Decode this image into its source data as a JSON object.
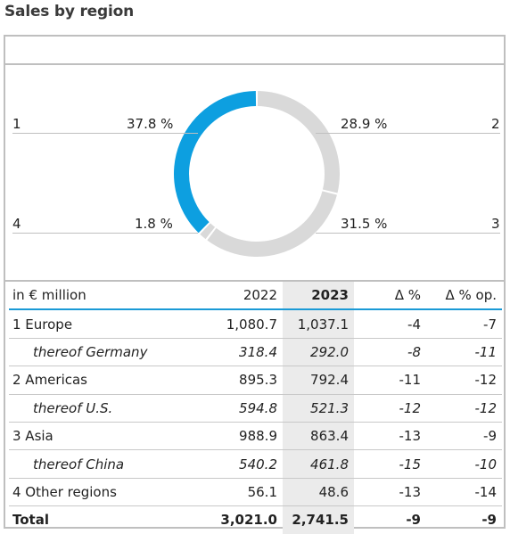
{
  "title": "Sales by region",
  "colors": {
    "highlight": "#0d9fe0",
    "segment": "#d9d9d9",
    "accent_line": "#1a9ad6"
  },
  "chart_data": {
    "type": "pie",
    "variant": "donut",
    "slices": [
      {
        "number": "1",
        "value": 37.8,
        "label": "37.8 %",
        "color": "#0d9fe0"
      },
      {
        "number": "2",
        "value": 28.9,
        "label": "28.9 %",
        "color": "#d9d9d9"
      },
      {
        "number": "3",
        "value": 31.5,
        "label": "31.5 %",
        "color": "#d9d9d9"
      },
      {
        "number": "4",
        "value": 1.8,
        "label": "1.8 %",
        "color": "#d9d9d9"
      }
    ]
  },
  "table": {
    "columns": [
      "in € million",
      "2022",
      "2023",
      "Δ %",
      "Δ % op."
    ],
    "rows": [
      {
        "type": "row",
        "cells": [
          "1 Europe",
          "1,080.7",
          "1,037.1",
          "-4",
          "-7"
        ]
      },
      {
        "type": "sub",
        "cells": [
          "thereof Germany",
          "318.4",
          "292.0",
          "-8",
          "-11"
        ]
      },
      {
        "type": "row",
        "cells": [
          "2 Americas",
          "895.3",
          "792.4",
          "-11",
          "-12"
        ]
      },
      {
        "type": "sub",
        "cells": [
          "thereof U.S.",
          "594.8",
          "521.3",
          "-12",
          "-12"
        ]
      },
      {
        "type": "row",
        "cells": [
          "3 Asia",
          "988.9",
          "863.4",
          "-13",
          "-9"
        ]
      },
      {
        "type": "sub",
        "cells": [
          "thereof China",
          "540.2",
          "461.8",
          "-15",
          "-10"
        ]
      },
      {
        "type": "row",
        "cells": [
          "4 Other regions",
          "56.1",
          "48.6",
          "-13",
          "-14"
        ]
      },
      {
        "type": "total",
        "cells": [
          "Total",
          "3,021.0",
          "2,741.5",
          "-9",
          "-9"
        ]
      }
    ]
  }
}
